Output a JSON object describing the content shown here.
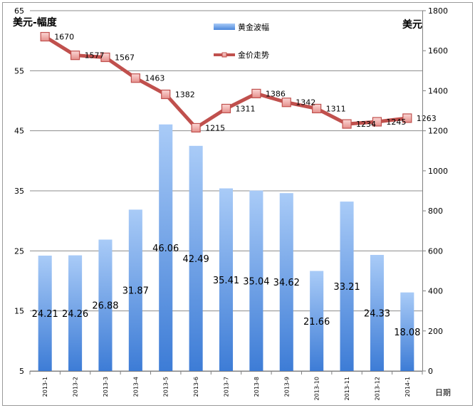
{
  "chart_data": {
    "type": "bar+line",
    "left_axis_title": "美元-幅度",
    "right_axis_title": "美元",
    "x_axis_title": "日期",
    "categories": [
      "2013-1",
      "2013-2",
      "2013-3",
      "2013-4",
      "2013-5",
      "2013-6",
      "2013-7",
      "2013-8",
      "2013-9",
      "2013-10",
      "2013-11",
      "2013-12",
      "2014-1"
    ],
    "left_axis": {
      "min": 5,
      "max": 65,
      "ticks": [
        5,
        15,
        25,
        35,
        45,
        55,
        65
      ]
    },
    "right_axis": {
      "min": 0,
      "max": 1800,
      "ticks": [
        0,
        200,
        400,
        600,
        800,
        1000,
        1200,
        1400,
        1600,
        1800
      ]
    },
    "grid": true,
    "legend_position": "top-center",
    "series": [
      {
        "name": "黄金波幅",
        "kind": "bar",
        "axis": "left",
        "color": "#7aa9e8",
        "values": [
          24.21,
          24.26,
          26.88,
          31.87,
          46.06,
          42.49,
          35.41,
          35.04,
          34.62,
          21.66,
          33.21,
          24.33,
          18.08
        ],
        "labels": [
          "24.21",
          "24.26",
          "26.88",
          "31.87",
          "46.06",
          "42.49",
          "35.41",
          "35.04",
          "34.62",
          "21.66",
          "33.21",
          "24.33",
          "18.08"
        ]
      },
      {
        "name": "金价走势",
        "kind": "line",
        "axis": "right",
        "color": "#c0504d",
        "values": [
          1670,
          1577,
          1567,
          1463,
          1382,
          1215,
          1311,
          1386,
          1342,
          1311,
          1234,
          1245,
          1263
        ],
        "labels": [
          "1670",
          "1577",
          "1567",
          "1463",
          "1382",
          "1215",
          "1311",
          "1386",
          "1342",
          "1311",
          "1234",
          "1245",
          "1263"
        ]
      }
    ]
  }
}
